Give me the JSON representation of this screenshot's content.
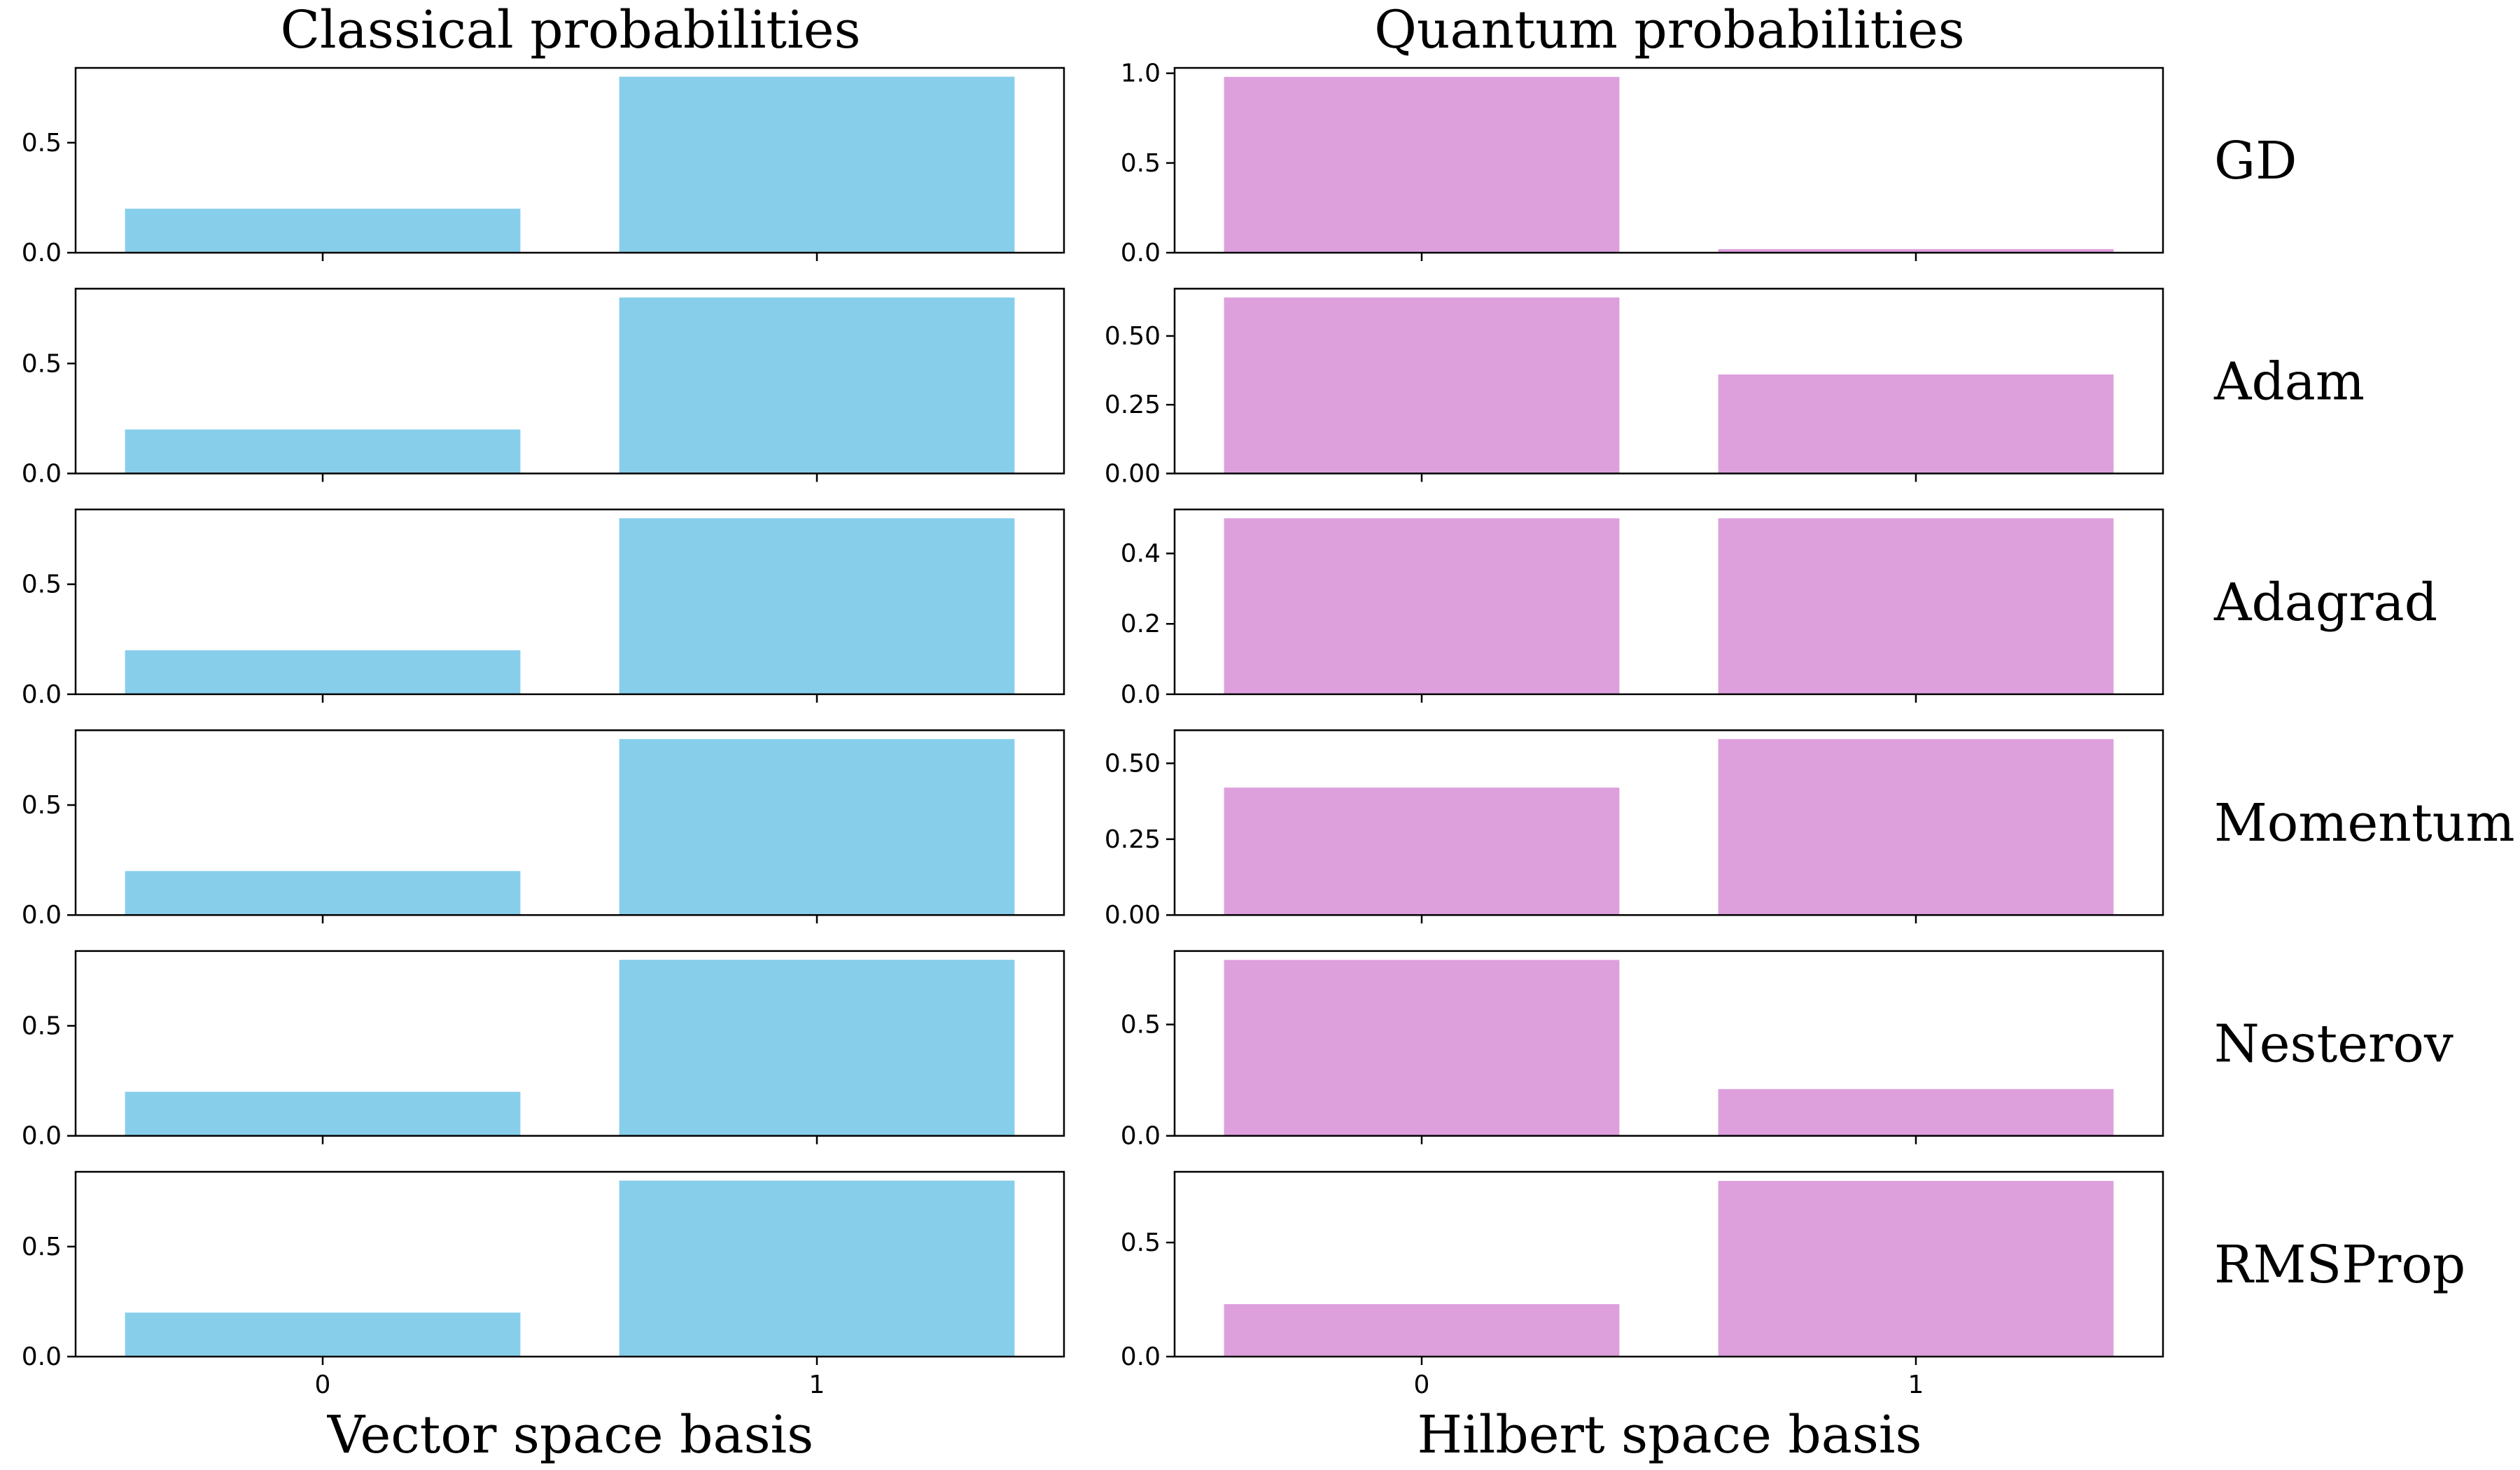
{
  "figure": {
    "col_titles": [
      "Classical probabilities",
      "Quantum probabilities"
    ],
    "col_xlabels": [
      "Vector space basis",
      "Hilbert space basis"
    ],
    "row_labels": [
      "GD",
      "Adam",
      "Adagrad",
      "Momentum",
      "Nesterov",
      "RMSProp"
    ]
  },
  "colors": {
    "classical": "#87CEEB",
    "quantum": "#DDA0DD",
    "axis": "#000000"
  },
  "chart_data": [
    {
      "type": "bar",
      "panel": "classical-GD",
      "categories": [
        "0",
        "1"
      ],
      "values": [
        0.2,
        0.8
      ],
      "ylim": [
        0,
        0.84
      ],
      "yticks": [
        0.0,
        0.5
      ],
      "yticklabels": [
        "0.0",
        "0.5"
      ],
      "xticklabels": [
        "",
        ""
      ]
    },
    {
      "type": "bar",
      "panel": "quantum-GD",
      "categories": [
        "0",
        "1"
      ],
      "values": [
        0.98,
        0.02
      ],
      "ylim": [
        0,
        1.03
      ],
      "yticks": [
        0.0,
        0.5,
        1.0
      ],
      "yticklabels": [
        "0.0",
        "0.5",
        "1.0"
      ],
      "xticklabels": [
        "",
        ""
      ]
    },
    {
      "type": "bar",
      "panel": "classical-Adam",
      "categories": [
        "0",
        "1"
      ],
      "values": [
        0.2,
        0.8
      ],
      "ylim": [
        0,
        0.84
      ],
      "yticks": [
        0.0,
        0.5
      ],
      "yticklabels": [
        "0.0",
        "0.5"
      ],
      "xticklabels": [
        "",
        ""
      ]
    },
    {
      "type": "bar",
      "panel": "quantum-Adam",
      "categories": [
        "0",
        "1"
      ],
      "values": [
        0.64,
        0.36
      ],
      "ylim": [
        0,
        0.672
      ],
      "yticks": [
        0.0,
        0.25,
        0.5
      ],
      "yticklabels": [
        "0.00",
        "0.25",
        "0.50"
      ],
      "xticklabels": [
        "",
        ""
      ]
    },
    {
      "type": "bar",
      "panel": "classical-Adagrad",
      "categories": [
        "0",
        "1"
      ],
      "values": [
        0.2,
        0.8
      ],
      "ylim": [
        0,
        0.84
      ],
      "yticks": [
        0.0,
        0.5
      ],
      "yticklabels": [
        "0.0",
        "0.5"
      ],
      "xticklabels": [
        "",
        ""
      ]
    },
    {
      "type": "bar",
      "panel": "quantum-Adagrad",
      "categories": [
        "0",
        "1"
      ],
      "values": [
        0.5,
        0.5
      ],
      "ylim": [
        0,
        0.525
      ],
      "yticks": [
        0.0,
        0.2,
        0.4
      ],
      "yticklabels": [
        "0.0",
        "0.2",
        "0.4"
      ],
      "xticklabels": [
        "",
        ""
      ]
    },
    {
      "type": "bar",
      "panel": "classical-Momentum",
      "categories": [
        "0",
        "1"
      ],
      "values": [
        0.2,
        0.8
      ],
      "ylim": [
        0,
        0.84
      ],
      "yticks": [
        0.0,
        0.5
      ],
      "yticklabels": [
        "0.0",
        "0.5"
      ],
      "xticklabels": [
        "",
        ""
      ]
    },
    {
      "type": "bar",
      "panel": "quantum-Momentum",
      "categories": [
        "0",
        "1"
      ],
      "values": [
        0.42,
        0.58
      ],
      "ylim": [
        0,
        0.609
      ],
      "yticks": [
        0.0,
        0.25,
        0.5
      ],
      "yticklabels": [
        "0.00",
        "0.25",
        "0.50"
      ],
      "xticklabels": [
        "",
        ""
      ]
    },
    {
      "type": "bar",
      "panel": "classical-Nesterov",
      "categories": [
        "0",
        "1"
      ],
      "values": [
        0.2,
        0.8
      ],
      "ylim": [
        0,
        0.84
      ],
      "yticks": [
        0.0,
        0.5
      ],
      "yticklabels": [
        "0.0",
        "0.5"
      ],
      "xticklabels": [
        "",
        ""
      ]
    },
    {
      "type": "bar",
      "panel": "quantum-Nesterov",
      "categories": [
        "0",
        "1"
      ],
      "values": [
        0.79,
        0.21
      ],
      "ylim": [
        0,
        0.83
      ],
      "yticks": [
        0.0,
        0.5
      ],
      "yticklabels": [
        "0.0",
        "0.5"
      ],
      "xticklabels": [
        "",
        ""
      ]
    },
    {
      "type": "bar",
      "panel": "classical-RMSProp",
      "categories": [
        "0",
        "1"
      ],
      "values": [
        0.2,
        0.8
      ],
      "ylim": [
        0,
        0.84
      ],
      "yticks": [
        0.0,
        0.5
      ],
      "yticklabels": [
        "0.0",
        "0.5"
      ],
      "xticklabels": [
        "0",
        "1"
      ]
    },
    {
      "type": "bar",
      "panel": "quantum-RMSProp",
      "categories": [
        "0",
        "1"
      ],
      "values": [
        0.23,
        0.77
      ],
      "ylim": [
        0,
        0.81
      ],
      "yticks": [
        0.0,
        0.5
      ],
      "yticklabels": [
        "0.0",
        "0.5"
      ],
      "xticklabels": [
        "0",
        "1"
      ]
    }
  ]
}
